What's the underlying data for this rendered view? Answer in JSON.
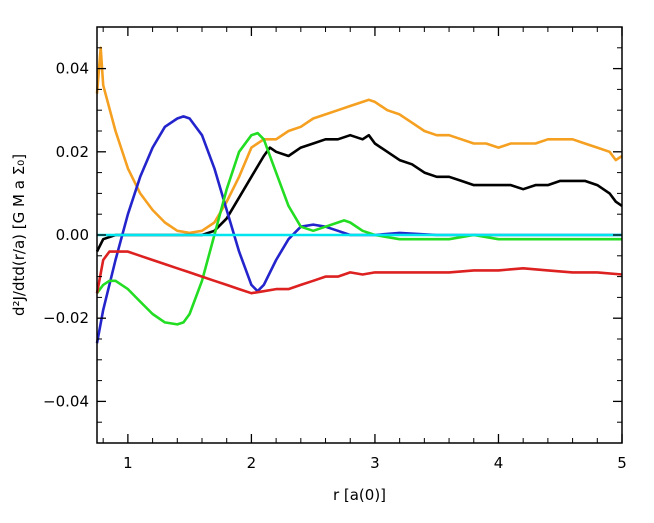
{
  "chart_data": {
    "type": "line",
    "title": "",
    "xlabel": "r [a(0)]",
    "ylabel": "d²J/dtd(r/a) [G M a Σ₀]",
    "xlim": [
      0.75,
      5.0
    ],
    "ylim": [
      -0.05,
      0.05
    ],
    "grid": false,
    "legend": "none",
    "x_ticks": [
      {
        "value": 1,
        "label": "1"
      },
      {
        "value": 2,
        "label": "2"
      },
      {
        "value": 3,
        "label": "3"
      },
      {
        "value": 4,
        "label": "4"
      },
      {
        "value": 5,
        "label": "5"
      }
    ],
    "y_ticks": [
      {
        "value": -0.04,
        "label": "−0.04"
      },
      {
        "value": -0.02,
        "label": "−0.02"
      },
      {
        "value": 0.0,
        "label": "0.00"
      },
      {
        "value": 0.02,
        "label": "0.02"
      },
      {
        "value": 0.04,
        "label": "0.04"
      }
    ],
    "series": [
      {
        "color": "#f5a020",
        "x": [
          0.75,
          0.78,
          0.8,
          0.9,
          1.0,
          1.1,
          1.2,
          1.3,
          1.4,
          1.5,
          1.6,
          1.7,
          1.8,
          1.9,
          2.0,
          2.1,
          2.2,
          2.3,
          2.4,
          2.5,
          2.6,
          2.7,
          2.8,
          2.9,
          2.95,
          3.0,
          3.1,
          3.2,
          3.3,
          3.4,
          3.5,
          3.6,
          3.7,
          3.8,
          3.9,
          4.0,
          4.1,
          4.2,
          4.3,
          4.4,
          4.5,
          4.6,
          4.7,
          4.8,
          4.9,
          4.95,
          5.0
        ],
        "y": [
          0.034,
          0.045,
          0.036,
          0.025,
          0.016,
          0.01,
          0.006,
          0.003,
          0.001,
          0.0005,
          0.001,
          0.003,
          0.008,
          0.014,
          0.021,
          0.023,
          0.023,
          0.025,
          0.026,
          0.028,
          0.029,
          0.03,
          0.031,
          0.032,
          0.0325,
          0.032,
          0.03,
          0.029,
          0.027,
          0.025,
          0.024,
          0.024,
          0.023,
          0.022,
          0.022,
          0.021,
          0.022,
          0.022,
          0.022,
          0.023,
          0.023,
          0.023,
          0.022,
          0.021,
          0.02,
          0.018,
          0.019
        ]
      },
      {
        "color": "#000000",
        "x": [
          0.75,
          0.8,
          0.9,
          1.0,
          1.1,
          1.2,
          1.3,
          1.4,
          1.5,
          1.6,
          1.7,
          1.8,
          1.9,
          2.0,
          2.1,
          2.15,
          2.2,
          2.3,
          2.4,
          2.5,
          2.6,
          2.7,
          2.8,
          2.9,
          2.95,
          3.0,
          3.1,
          3.2,
          3.3,
          3.4,
          3.5,
          3.6,
          3.7,
          3.8,
          3.9,
          4.0,
          4.1,
          4.2,
          4.3,
          4.4,
          4.5,
          4.6,
          4.7,
          4.8,
          4.9,
          4.95,
          5.0
        ],
        "y": [
          -0.004,
          -0.001,
          0.0,
          0.0,
          0.0,
          0.0,
          0.0,
          0.0,
          0.0,
          0.0,
          0.001,
          0.004,
          0.009,
          0.014,
          0.019,
          0.021,
          0.02,
          0.019,
          0.021,
          0.022,
          0.023,
          0.023,
          0.024,
          0.023,
          0.024,
          0.022,
          0.02,
          0.018,
          0.017,
          0.015,
          0.014,
          0.014,
          0.013,
          0.012,
          0.012,
          0.012,
          0.012,
          0.011,
          0.012,
          0.012,
          0.013,
          0.013,
          0.013,
          0.012,
          0.01,
          0.008,
          0.007
        ]
      },
      {
        "color": "#2424cc",
        "x": [
          0.75,
          0.8,
          0.9,
          1.0,
          1.1,
          1.2,
          1.3,
          1.4,
          1.45,
          1.5,
          1.6,
          1.7,
          1.8,
          1.9,
          2.0,
          2.05,
          2.1,
          2.2,
          2.3,
          2.4,
          2.5,
          2.6,
          2.7,
          2.8,
          2.9,
          3.0,
          3.2,
          3.5,
          4.0,
          4.5,
          5.0
        ],
        "y": [
          -0.026,
          -0.018,
          -0.006,
          0.005,
          0.014,
          0.021,
          0.026,
          0.028,
          0.0285,
          0.028,
          0.024,
          0.016,
          0.006,
          -0.004,
          -0.012,
          -0.0135,
          -0.012,
          -0.006,
          -0.001,
          0.002,
          0.0025,
          0.002,
          0.001,
          0.0,
          0.0,
          0.0,
          0.0005,
          0.0,
          0.0,
          0.0,
          0.0
        ]
      },
      {
        "color": "#22dd22",
        "x": [
          0.75,
          0.8,
          0.85,
          0.9,
          1.0,
          1.1,
          1.2,
          1.3,
          1.4,
          1.45,
          1.5,
          1.6,
          1.7,
          1.8,
          1.9,
          2.0,
          2.05,
          2.1,
          2.2,
          2.3,
          2.4,
          2.5,
          2.6,
          2.7,
          2.75,
          2.8,
          2.9,
          3.0,
          3.2,
          3.4,
          3.6,
          3.8,
          4.0,
          4.5,
          5.0
        ],
        "y": [
          -0.014,
          -0.012,
          -0.011,
          -0.011,
          -0.013,
          -0.016,
          -0.019,
          -0.021,
          -0.0215,
          -0.021,
          -0.019,
          -0.011,
          0.0,
          0.011,
          0.02,
          0.024,
          0.0245,
          0.023,
          0.015,
          0.007,
          0.002,
          0.001,
          0.002,
          0.003,
          0.0035,
          0.003,
          0.001,
          0.0,
          -0.001,
          -0.001,
          -0.001,
          0.0,
          -0.001,
          -0.001,
          -0.001
        ]
      },
      {
        "color": "#dd2020",
        "x": [
          0.75,
          0.8,
          0.85,
          0.9,
          1.0,
          1.1,
          1.2,
          1.3,
          1.4,
          1.5,
          1.6,
          1.7,
          1.8,
          1.9,
          2.0,
          2.1,
          2.2,
          2.3,
          2.4,
          2.5,
          2.6,
          2.7,
          2.8,
          2.9,
          3.0,
          3.2,
          3.4,
          3.6,
          3.8,
          4.0,
          4.2,
          4.4,
          4.6,
          4.8,
          5.0
        ],
        "y": [
          -0.014,
          -0.006,
          -0.004,
          -0.004,
          -0.004,
          -0.005,
          -0.006,
          -0.007,
          -0.008,
          -0.009,
          -0.01,
          -0.011,
          -0.012,
          -0.013,
          -0.014,
          -0.0135,
          -0.013,
          -0.013,
          -0.012,
          -0.011,
          -0.01,
          -0.01,
          -0.009,
          -0.0095,
          -0.009,
          -0.009,
          -0.009,
          -0.009,
          -0.0085,
          -0.0085,
          -0.008,
          -0.0085,
          -0.009,
          -0.009,
          -0.0095
        ]
      },
      {
        "color": "#00e5ee",
        "x": [
          0.75,
          5.0
        ],
        "y": [
          0.0,
          0.0
        ]
      }
    ]
  }
}
